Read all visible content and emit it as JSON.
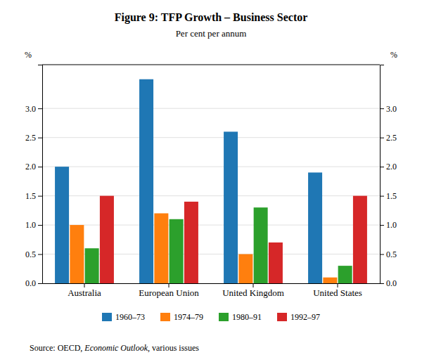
{
  "chart_data": {
    "type": "bar",
    "title": "Figure 9: TFP Growth – Business Sector",
    "subtitle": "Per cent per annum",
    "ylabel": "%",
    "y2label": "%",
    "categories": [
      "Australia",
      "European Union",
      "United Kingdom",
      "United States"
    ],
    "series": [
      {
        "name": "1960–73",
        "values": [
          2.0,
          3.5,
          2.6,
          1.9
        ]
      },
      {
        "name": "1974–79",
        "values": [
          1.0,
          1.2,
          0.5,
          0.1
        ]
      },
      {
        "name": "1980–91",
        "values": [
          0.6,
          1.1,
          1.3,
          0.3
        ]
      },
      {
        "name": "1992–97",
        "values": [
          1.5,
          1.4,
          0.7,
          1.5
        ]
      }
    ],
    "ylim": [
      0.0,
      3.75
    ],
    "yticks": [
      {
        "value": 0.0,
        "label": "0.0"
      },
      {
        "value": 0.5,
        "label": "0.5"
      },
      {
        "value": 1.0,
        "label": "1.0"
      },
      {
        "value": 1.5,
        "label": "1.5"
      },
      {
        "value": 2.0,
        "label": "2.0"
      },
      {
        "value": 2.5,
        "label": "2.5"
      },
      {
        "value": 3.0,
        "label": "3.0"
      }
    ],
    "y2lim": [
      0.0,
      3.75
    ],
    "y2ticks": [
      {
        "value": 0.0,
        "label": "0.0"
      },
      {
        "value": 0.5,
        "label": "0.5"
      },
      {
        "value": 1.0,
        "label": "1.0"
      },
      {
        "value": 1.5,
        "label": "1.5"
      },
      {
        "value": 2.0,
        "label": "2.0"
      },
      {
        "value": 2.5,
        "label": "2.5"
      },
      {
        "value": 3.0,
        "label": "3.0"
      }
    ],
    "grid": true,
    "legend": "bottom",
    "annotations": [
      "Source: OECD, ",
      "Economic Outlook",
      ", various issues"
    ]
  }
}
